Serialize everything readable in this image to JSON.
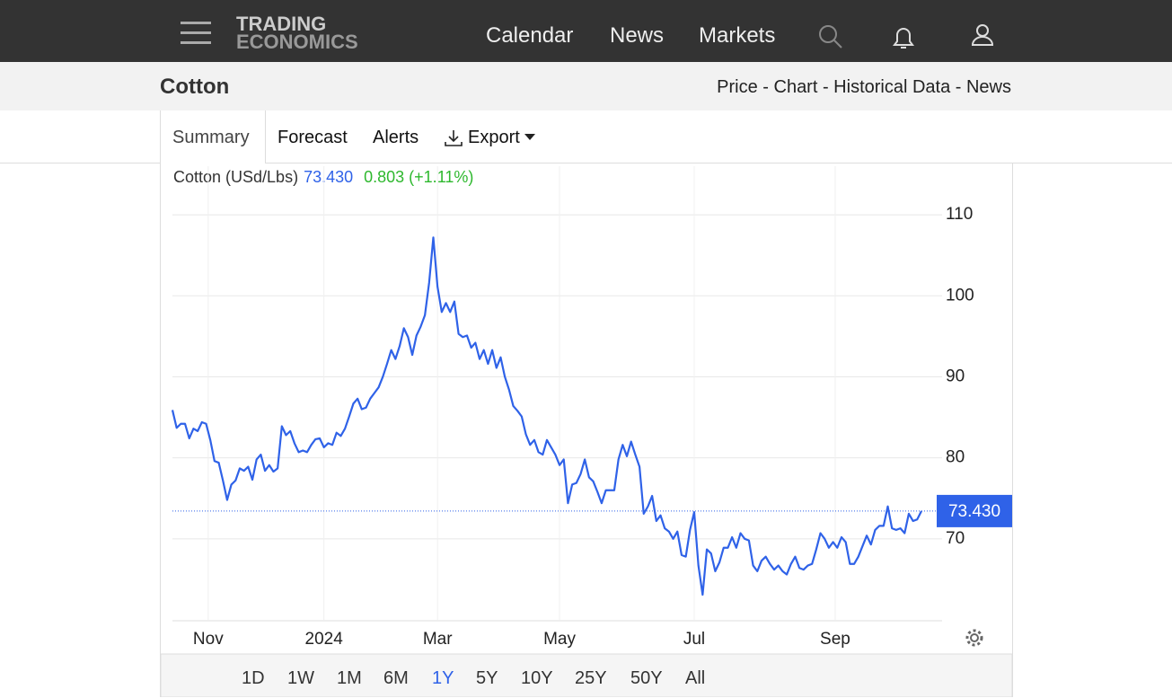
{
  "nav": {
    "logo": [
      "TRADING",
      "ECONOMICS"
    ],
    "links": [
      "Calendar",
      "News",
      "Markets"
    ]
  },
  "header": {
    "title": "Cotton",
    "links": "Price - Chart - Historical Data - News"
  },
  "tabs": [
    "Summary",
    "Forecast",
    "Alerts",
    "Export"
  ],
  "chart_data": {
    "type": "line",
    "title": "Cotton (USd/Lbs)",
    "current": {
      "value": 73.43,
      "label": "73.430"
    },
    "change_label": "0.803 (+1.11%)",
    "series": [
      {
        "name": "Cotton",
        "color": "#2f62e8",
        "values": [
          85.9,
          83.7,
          84.2,
          84.2,
          82.4,
          83.6,
          83.3,
          84.4,
          84.2,
          82.2,
          79.6,
          79.4,
          77.2,
          74.8,
          76.7,
          77.2,
          78.7,
          78.4,
          78.9,
          77.3,
          79.8,
          80.4,
          78.4,
          79.1,
          78.3,
          78.7,
          83.9,
          82.8,
          83.3,
          81.8,
          80.7,
          80.9,
          80.7,
          81.6,
          82.3,
          82.4,
          81.3,
          81.8,
          81.6,
          83.1,
          82.7,
          83.6,
          85.1,
          86.7,
          87.3,
          86.0,
          86.2,
          87.3,
          88.0,
          88.7,
          90.0,
          91.6,
          93.3,
          92.2,
          93.8,
          96.0,
          94.9,
          92.7,
          95.1,
          96.2,
          97.6,
          101.6,
          107.2,
          101.1,
          98.0,
          99.1,
          98.0,
          99.3,
          95.3,
          94.9,
          95.1,
          93.6,
          94.2,
          92.2,
          93.3,
          91.6,
          93.3,
          91.1,
          92.4,
          90.0,
          88.4,
          86.4,
          85.8,
          85.1,
          82.9,
          81.6,
          82.2,
          80.7,
          80.4,
          82.2,
          81.3,
          80.4,
          79.1,
          79.8,
          74.4,
          76.7,
          76.9,
          78.0,
          79.8,
          77.6,
          77.1,
          75.8,
          74.4,
          76.0,
          76.0,
          76.0,
          79.8,
          81.6,
          80.2,
          82.0,
          80.4,
          78.9,
          73.1,
          74.0,
          75.3,
          72.2,
          72.9,
          71.3,
          70.9,
          70.0,
          70.9,
          68.0,
          67.8,
          71.1,
          73.3,
          66.7,
          63.1,
          68.7,
          68.2,
          66.0,
          67.1,
          68.9,
          68.9,
          70.2,
          68.9,
          70.7,
          70.0,
          69.8,
          66.7,
          66.0,
          67.3,
          67.8,
          66.9,
          66.2,
          66.7,
          66.0,
          65.6,
          66.9,
          67.8,
          66.4,
          66.2,
          66.7,
          66.9,
          68.7,
          70.7,
          70.0,
          68.9,
          69.6,
          68.9,
          70.2,
          69.6,
          66.9,
          66.9,
          67.8,
          69.1,
          70.4,
          69.3,
          71.1,
          71.6,
          71.6,
          74.0,
          71.3,
          71.1,
          71.3,
          70.7,
          73.1,
          72.2,
          72.4,
          73.43
        ]
      }
    ],
    "xlim": [
      0,
      178
    ],
    "xticks": [
      {
        "value": 8.5,
        "label": "Nov"
      },
      {
        "value": 36,
        "label": "2024"
      },
      {
        "value": 63,
        "label": "Mar"
      },
      {
        "value": 92,
        "label": "May"
      },
      {
        "value": 124,
        "label": "Jul"
      },
      {
        "value": 157.5,
        "label": "Sep"
      }
    ],
    "ylim": [
      60,
      116
    ],
    "yticks": [
      70,
      80,
      90,
      100,
      110
    ],
    "grid": true
  },
  "ranges": [
    "1D",
    "1W",
    "1M",
    "6M",
    "1Y",
    "5Y",
    "10Y",
    "25Y",
    "50Y",
    "All"
  ],
  "active_range": "1Y"
}
